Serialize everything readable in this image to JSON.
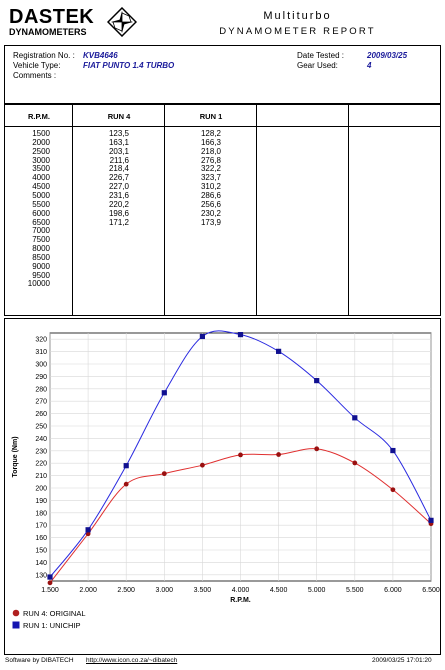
{
  "header": {
    "logo_word": "DASTEK",
    "logo_sub": "DYNAMOMETERS",
    "title": "Multiturbo",
    "subtitle": "DYNAMOMETER REPORT"
  },
  "info": {
    "registration_label": "Registration No. :",
    "registration_value": "KVB4646",
    "vehicle_label": "Vehicle Type:",
    "vehicle_value": "FIAT PUNTO 1.4 TURBO",
    "comments_label": "Comments :",
    "date_label": "Date Tested :",
    "date_value": "2009/03/25",
    "gear_label": "Gear Used:",
    "gear_value": "4"
  },
  "table": {
    "headers": [
      "R.P.M.",
      "RUN 4",
      "RUN 1"
    ],
    "rpm": [
      "1500",
      "2000",
      "2500",
      "3000",
      "3500",
      "4000",
      "4500",
      "5000",
      "5500",
      "6000",
      "6500",
      "7000",
      "7500",
      "8000",
      "8500",
      "9000",
      "9500",
      "10000"
    ],
    "run4": [
      "123,5",
      "163,1",
      "203,1",
      "211,6",
      "218,4",
      "226,7",
      "227,0",
      "231,6",
      "220,2",
      "198,6",
      "171,2"
    ],
    "run1": [
      "128,2",
      "166,3",
      "218,0",
      "276,8",
      "322,2",
      "323,7",
      "310,2",
      "286,6",
      "256,6",
      "230,2",
      "173,9"
    ]
  },
  "chart_data": {
    "type": "line",
    "xlabel": "R.P.M.",
    "ylabel": "Torque (Nm)",
    "x": [
      1500,
      2000,
      2500,
      3000,
      3500,
      4000,
      4500,
      5000,
      5500,
      6000,
      6500
    ],
    "x_ticks": [
      "1.500",
      "2.000",
      "2.500",
      "3.000",
      "3.500",
      "4.000",
      "4.500",
      "5.000",
      "5.500",
      "6.000",
      "6.500"
    ],
    "xlim": [
      1500,
      6500
    ],
    "ylim": [
      125,
      325
    ],
    "y_ticks": [
      130,
      140,
      150,
      160,
      170,
      180,
      190,
      200,
      210,
      220,
      230,
      240,
      250,
      260,
      270,
      280,
      290,
      300,
      310,
      320
    ],
    "grid": true,
    "series": [
      {
        "name": "RUN 4: ORIGINAL",
        "color": "#e03030",
        "marker_color": "#9a1010",
        "marker": "circle",
        "values": [
          123.5,
          163.1,
          203.1,
          211.6,
          218.4,
          226.7,
          227.0,
          231.6,
          220.2,
          198.6,
          171.2
        ]
      },
      {
        "name": "RUN 1: UNICHIP",
        "color": "#2a2ae0",
        "marker_color": "#101090",
        "marker": "square",
        "values": [
          128.2,
          166.3,
          218.0,
          276.8,
          322.2,
          323.7,
          310.2,
          286.6,
          256.6,
          230.2,
          173.9
        ]
      }
    ],
    "legend_position": "bottom-left"
  },
  "footer": {
    "software": "Software by DIBATECH",
    "url": "http://www.icon.co.za/~dibatech",
    "timestamp": "2009/03/25 17:01:20"
  }
}
